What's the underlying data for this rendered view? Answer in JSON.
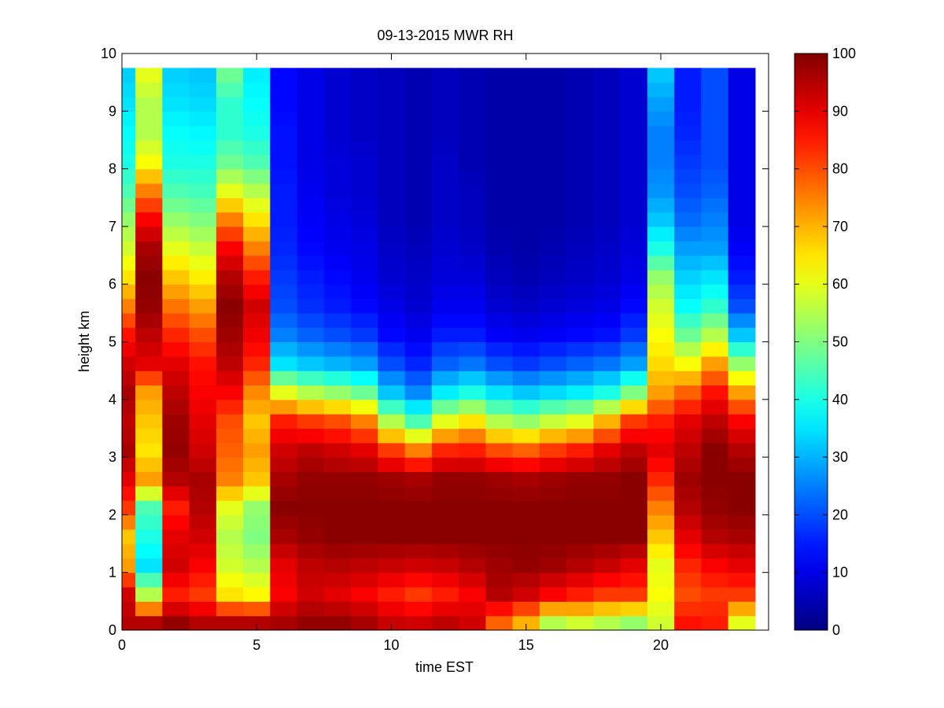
{
  "chart_data": {
    "type": "heatmap",
    "title": "09-13-2015 MWR RH",
    "xlabel": "time EST",
    "ylabel": "height km",
    "xlim": [
      0,
      24
    ],
    "ylim": [
      0,
      10
    ],
    "x_ticks": [
      0,
      5,
      10,
      15,
      20
    ],
    "y_ticks": [
      0,
      1,
      2,
      3,
      4,
      5,
      6,
      7,
      8,
      9,
      10
    ],
    "x_tick_labels": [
      "0",
      "5",
      "10",
      "15",
      "20"
    ],
    "y_tick_labels": [
      "0",
      "1",
      "2",
      "3",
      "4",
      "5",
      "6",
      "7",
      "8",
      "9",
      "10"
    ],
    "colorbar": {
      "range": [
        0,
        100
      ],
      "ticks": [
        0,
        10,
        20,
        30,
        40,
        50,
        60,
        70,
        80,
        90,
        100
      ],
      "tick_labels": [
        "0",
        "10",
        "20",
        "30",
        "40",
        "50",
        "60",
        "70",
        "80",
        "90",
        "100"
      ],
      "colormap": "jet"
    },
    "time_hours": [
      0,
      1,
      2,
      3,
      4,
      5,
      6,
      7,
      8,
      9,
      10,
      11,
      12,
      13,
      14,
      15,
      16,
      17,
      18,
      19,
      20,
      21,
      22,
      23
    ],
    "height_km": [
      0,
      0.5,
      1,
      1.5,
      2,
      2.5,
      3,
      3.5,
      4,
      4.5,
      5,
      5.5,
      6,
      6.5,
      7,
      7.5,
      8,
      8.5,
      9,
      9.5
    ],
    "rh_profiles_percent": [
      [
        95,
        92,
        72,
        68,
        82,
        90,
        96,
        94,
        96,
        92,
        86,
        75,
        65,
        58,
        52,
        45,
        40,
        38,
        35,
        33
      ],
      [
        95,
        55,
        35,
        40,
        45,
        72,
        65,
        68,
        72,
        90,
        94,
        98,
        99,
        96,
        88,
        75,
        62,
        55,
        55,
        60
      ],
      [
        98,
        85,
        92,
        90,
        85,
        95,
        98,
        97,
        94,
        90,
        84,
        76,
        68,
        60,
        52,
        45,
        40,
        38,
        35,
        33
      ],
      [
        95,
        82,
        88,
        92,
        95,
        96,
        92,
        90,
        88,
        86,
        80,
        72,
        64,
        57,
        50,
        44,
        40,
        37,
        34,
        32
      ],
      [
        95,
        65,
        58,
        55,
        60,
        75,
        78,
        80,
        88,
        94,
        97,
        99,
        95,
        88,
        75,
        60,
        48,
        42,
        42,
        48
      ],
      [
        95,
        63,
        55,
        50,
        52,
        68,
        72,
        68,
        74,
        84,
        89,
        92,
        85,
        75,
        65,
        55,
        45,
        40,
        38,
        36
      ],
      [
        96,
        88,
        90,
        96,
        99,
        96,
        92,
        85,
        60,
        35,
        25,
        20,
        18,
        16,
        15,
        15,
        14,
        14,
        13,
        13
      ],
      [
        98,
        92,
        94,
        98,
        99,
        98,
        94,
        82,
        55,
        32,
        22,
        17,
        15,
        13,
        12,
        11,
        10,
        10,
        10,
        10
      ],
      [
        98,
        90,
        95,
        99,
        99,
        98,
        92,
        80,
        52,
        30,
        20,
        15,
        13,
        11,
        10,
        9,
        9,
        8,
        8,
        8
      ],
      [
        96,
        88,
        94,
        99,
        99,
        98,
        90,
        75,
        48,
        28,
        18,
        13,
        11,
        10,
        9,
        8,
        8,
        7,
        7,
        7
      ],
      [
        93,
        85,
        93,
        99,
        99,
        97,
        82,
        55,
        32,
        20,
        13,
        10,
        8,
        7,
        6,
        6,
        6,
        6,
        6,
        6
      ],
      [
        92,
        82,
        92,
        99,
        99,
        96,
        75,
        45,
        26,
        16,
        11,
        8,
        7,
        6,
        5,
        5,
        5,
        5,
        5,
        5
      ],
      [
        94,
        85,
        93,
        99,
        99,
        98,
        84,
        60,
        36,
        22,
        15,
        11,
        9,
        8,
        7,
        7,
        7,
        6,
        6,
        6
      ],
      [
        92,
        88,
        95,
        99,
        99,
        98,
        85,
        65,
        40,
        24,
        15,
        11,
        9,
        7,
        6,
        6,
        5,
        5,
        5,
        5
      ],
      [
        78,
        95,
        97,
        99,
        99,
        97,
        80,
        55,
        35,
        20,
        12,
        8,
        6,
        5,
        4,
        4,
        4,
        4,
        4,
        4
      ],
      [
        70,
        92,
        98,
        99,
        99,
        96,
        78,
        52,
        32,
        18,
        11,
        7,
        5,
        4,
        4,
        4,
        4,
        4,
        4,
        4
      ],
      [
        55,
        88,
        97,
        99,
        99,
        97,
        82,
        57,
        34,
        20,
        12,
        8,
        6,
        5,
        4,
        4,
        4,
        4,
        4,
        4
      ],
      [
        58,
        85,
        95,
        99,
        99,
        98,
        85,
        60,
        36,
        22,
        13,
        9,
        7,
        6,
        5,
        5,
        5,
        5,
        5,
        5
      ],
      [
        55,
        82,
        93,
        99,
        99,
        98,
        90,
        70,
        40,
        24,
        14,
        10,
        8,
        7,
        6,
        6,
        6,
        6,
        6,
        6
      ],
      [
        52,
        82,
        90,
        99,
        99,
        99,
        94,
        82,
        50,
        28,
        18,
        13,
        10,
        9,
        8,
        8,
        8,
        8,
        8,
        8
      ],
      [
        58,
        62,
        60,
        68,
        75,
        84,
        90,
        85,
        72,
        66,
        62,
        58,
        52,
        40,
        32,
        27,
        25,
        25,
        28,
        32
      ],
      [
        86,
        80,
        84,
        90,
        95,
        97,
        94,
        90,
        78,
        62,
        48,
        38,
        33,
        28,
        23,
        20,
        18,
        16,
        15,
        15
      ],
      [
        85,
        82,
        88,
        95,
        98,
        99,
        99,
        94,
        86,
        72,
        55,
        42,
        35,
        28,
        25,
        22,
        20,
        20,
        20,
        20
      ],
      [
        60,
        82,
        90,
        96,
        99,
        99,
        95,
        88,
        72,
        52,
        32,
        20,
        15,
        12,
        10,
        10,
        10,
        10,
        10,
        10
      ]
    ]
  }
}
